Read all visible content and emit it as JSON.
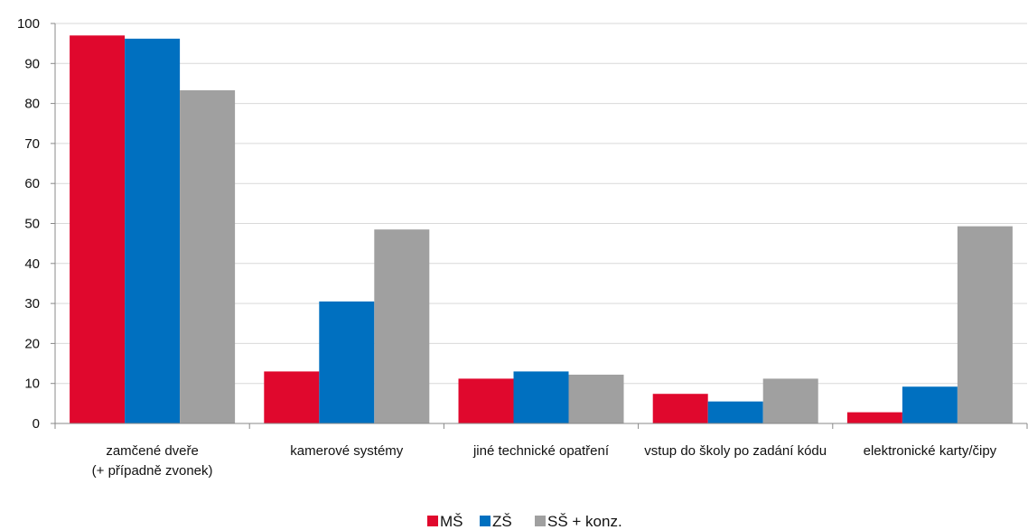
{
  "chart_data": {
    "type": "bar",
    "categories": [
      [
        "zamčené dveře",
        "(+ případně zvonek)"
      ],
      [
        "kamerové systémy"
      ],
      [
        "jiné technické opatření"
      ],
      [
        "vstup do školy po zadání kódu"
      ],
      [
        "elektronické karty/čipy"
      ]
    ],
    "series": [
      {
        "name": "MŠ",
        "color": "#e0082d",
        "values": [
          97,
          13,
          11.2,
          7.4,
          2.8
        ]
      },
      {
        "name": "ZŠ",
        "color": "#0070c0",
        "values": [
          96.2,
          30.5,
          13,
          5.5,
          9.2
        ]
      },
      {
        "name": "SŠ + konz.",
        "color": "#a0a0a0",
        "values": [
          83.3,
          48.5,
          12.2,
          11.2,
          49.3
        ]
      }
    ],
    "ylim": [
      0,
      100
    ],
    "yticks": [
      0,
      10,
      20,
      30,
      40,
      50,
      60,
      70,
      80,
      90,
      100
    ],
    "grid": true,
    "legend": "bottom-center"
  }
}
